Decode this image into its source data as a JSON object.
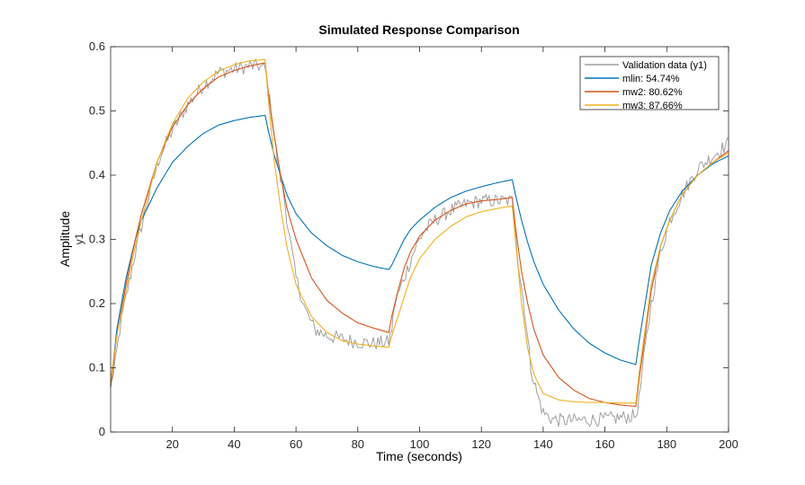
{
  "chart_data": {
    "type": "line",
    "title": "Simulated Response Comparison",
    "xlabel": "Time (seconds)",
    "ylabel": "Amplitude",
    "ylabel_sub": "y1",
    "xlim": [
      0,
      200
    ],
    "ylim": [
      0,
      0.6
    ],
    "xticks": [
      20,
      40,
      60,
      80,
      100,
      120,
      140,
      160,
      180,
      200
    ],
    "xtick_labels": [
      "20",
      "40",
      "60",
      "80",
      "100",
      "120",
      "140",
      "160",
      "180",
      "200"
    ],
    "yticks": [
      0,
      0.1,
      0.2,
      0.3,
      0.4,
      0.5,
      0.6
    ],
    "ytick_labels": [
      "0",
      "0.1",
      "0.2",
      "0.3",
      "0.4",
      "0.5",
      "0.6"
    ],
    "grid": false,
    "legend_position": "top-right",
    "series": [
      {
        "name": "Validation data (y1)",
        "color": "#a0a0a0",
        "noisy": true,
        "x": [
          0,
          1,
          3,
          5,
          8,
          10,
          13,
          16,
          20,
          25,
          30,
          35,
          40,
          45,
          48,
          50,
          52,
          54,
          56,
          58,
          60,
          63,
          66,
          70,
          75,
          80,
          85,
          90,
          91,
          92,
          95,
          98,
          101,
          105,
          110,
          115,
          120,
          125,
          130,
          131,
          132,
          134,
          136,
          138,
          140,
          143,
          146,
          150,
          160,
          170,
          171,
          173,
          175,
          178,
          181,
          185,
          190,
          195,
          200
        ],
        "y": [
          0.08,
          0.09,
          0.16,
          0.21,
          0.28,
          0.32,
          0.38,
          0.43,
          0.47,
          0.51,
          0.54,
          0.56,
          0.565,
          0.57,
          0.57,
          0.565,
          0.5,
          0.42,
          0.37,
          0.3,
          0.24,
          0.19,
          0.16,
          0.15,
          0.145,
          0.14,
          0.138,
          0.14,
          0.16,
          0.2,
          0.24,
          0.28,
          0.31,
          0.33,
          0.345,
          0.355,
          0.36,
          0.36,
          0.36,
          0.32,
          0.26,
          0.19,
          0.1,
          0.06,
          0.03,
          0.02,
          0.018,
          0.018,
          0.02,
          0.025,
          0.05,
          0.13,
          0.2,
          0.28,
          0.33,
          0.37,
          0.41,
          0.43,
          0.45
        ]
      },
      {
        "name": "mlin: 54.74%",
        "color": "#0072bd",
        "x": [
          0,
          2,
          5,
          8,
          10,
          15,
          20,
          25,
          30,
          35,
          40,
          45,
          50,
          51,
          53,
          55,
          57,
          60,
          65,
          70,
          75,
          80,
          85,
          90,
          91,
          93,
          95,
          97,
          100,
          105,
          110,
          115,
          120,
          125,
          130,
          131,
          133,
          135,
          137,
          140,
          145,
          150,
          155,
          160,
          165,
          170,
          171,
          173,
          175,
          178,
          181,
          185,
          190,
          195,
          200
        ],
        "y": [
          0.07,
          0.16,
          0.24,
          0.3,
          0.33,
          0.38,
          0.42,
          0.445,
          0.465,
          0.478,
          0.485,
          0.49,
          0.493,
          0.47,
          0.43,
          0.4,
          0.37,
          0.34,
          0.31,
          0.29,
          0.275,
          0.265,
          0.258,
          0.253,
          0.26,
          0.28,
          0.3,
          0.315,
          0.33,
          0.35,
          0.365,
          0.375,
          0.382,
          0.388,
          0.393,
          0.37,
          0.33,
          0.295,
          0.265,
          0.23,
          0.19,
          0.16,
          0.138,
          0.123,
          0.112,
          0.105,
          0.14,
          0.2,
          0.26,
          0.31,
          0.345,
          0.375,
          0.4,
          0.418,
          0.43
        ]
      },
      {
        "name": "mw2: 80.62%",
        "color": "#d95319",
        "x": [
          0,
          2,
          5,
          8,
          10,
          15,
          20,
          25,
          30,
          35,
          40,
          45,
          50,
          51,
          53,
          55,
          57,
          60,
          65,
          70,
          75,
          80,
          85,
          90,
          91,
          93,
          95,
          97,
          100,
          105,
          110,
          115,
          120,
          125,
          130,
          131,
          133,
          135,
          137,
          140,
          145,
          150,
          155,
          160,
          165,
          170,
          171,
          173,
          175,
          178,
          181,
          185,
          190,
          195,
          200
        ],
        "y": [
          0.07,
          0.15,
          0.23,
          0.3,
          0.34,
          0.42,
          0.475,
          0.51,
          0.535,
          0.553,
          0.563,
          0.57,
          0.575,
          0.53,
          0.46,
          0.4,
          0.35,
          0.3,
          0.24,
          0.205,
          0.185,
          0.17,
          0.162,
          0.155,
          0.18,
          0.22,
          0.255,
          0.28,
          0.305,
          0.33,
          0.345,
          0.355,
          0.36,
          0.362,
          0.365,
          0.32,
          0.25,
          0.2,
          0.16,
          0.12,
          0.085,
          0.065,
          0.052,
          0.046,
          0.042,
          0.04,
          0.08,
          0.15,
          0.22,
          0.29,
          0.33,
          0.37,
          0.4,
          0.42,
          0.438
        ]
      },
      {
        "name": "mw3: 87.66%",
        "color": "#edb120",
        "x": [
          0,
          2,
          5,
          8,
          10,
          15,
          20,
          25,
          30,
          35,
          40,
          45,
          50,
          51,
          53,
          55,
          57,
          60,
          65,
          70,
          75,
          80,
          85,
          90,
          91,
          93,
          95,
          97,
          100,
          105,
          110,
          115,
          120,
          125,
          130,
          131,
          133,
          135,
          137,
          140,
          145,
          150,
          155,
          160,
          165,
          170,
          171,
          173,
          175,
          178,
          181,
          185,
          190,
          195,
          200
        ],
        "y": [
          0.08,
          0.15,
          0.22,
          0.29,
          0.33,
          0.42,
          0.48,
          0.52,
          0.545,
          0.562,
          0.572,
          0.578,
          0.58,
          0.52,
          0.42,
          0.35,
          0.29,
          0.23,
          0.18,
          0.155,
          0.142,
          0.137,
          0.134,
          0.132,
          0.15,
          0.18,
          0.21,
          0.24,
          0.27,
          0.3,
          0.32,
          0.335,
          0.343,
          0.348,
          0.352,
          0.3,
          0.2,
          0.13,
          0.09,
          0.06,
          0.05,
          0.047,
          0.046,
          0.046,
          0.045,
          0.045,
          0.09,
          0.16,
          0.23,
          0.29,
          0.33,
          0.37,
          0.4,
          0.42,
          0.435
        ]
      }
    ]
  }
}
